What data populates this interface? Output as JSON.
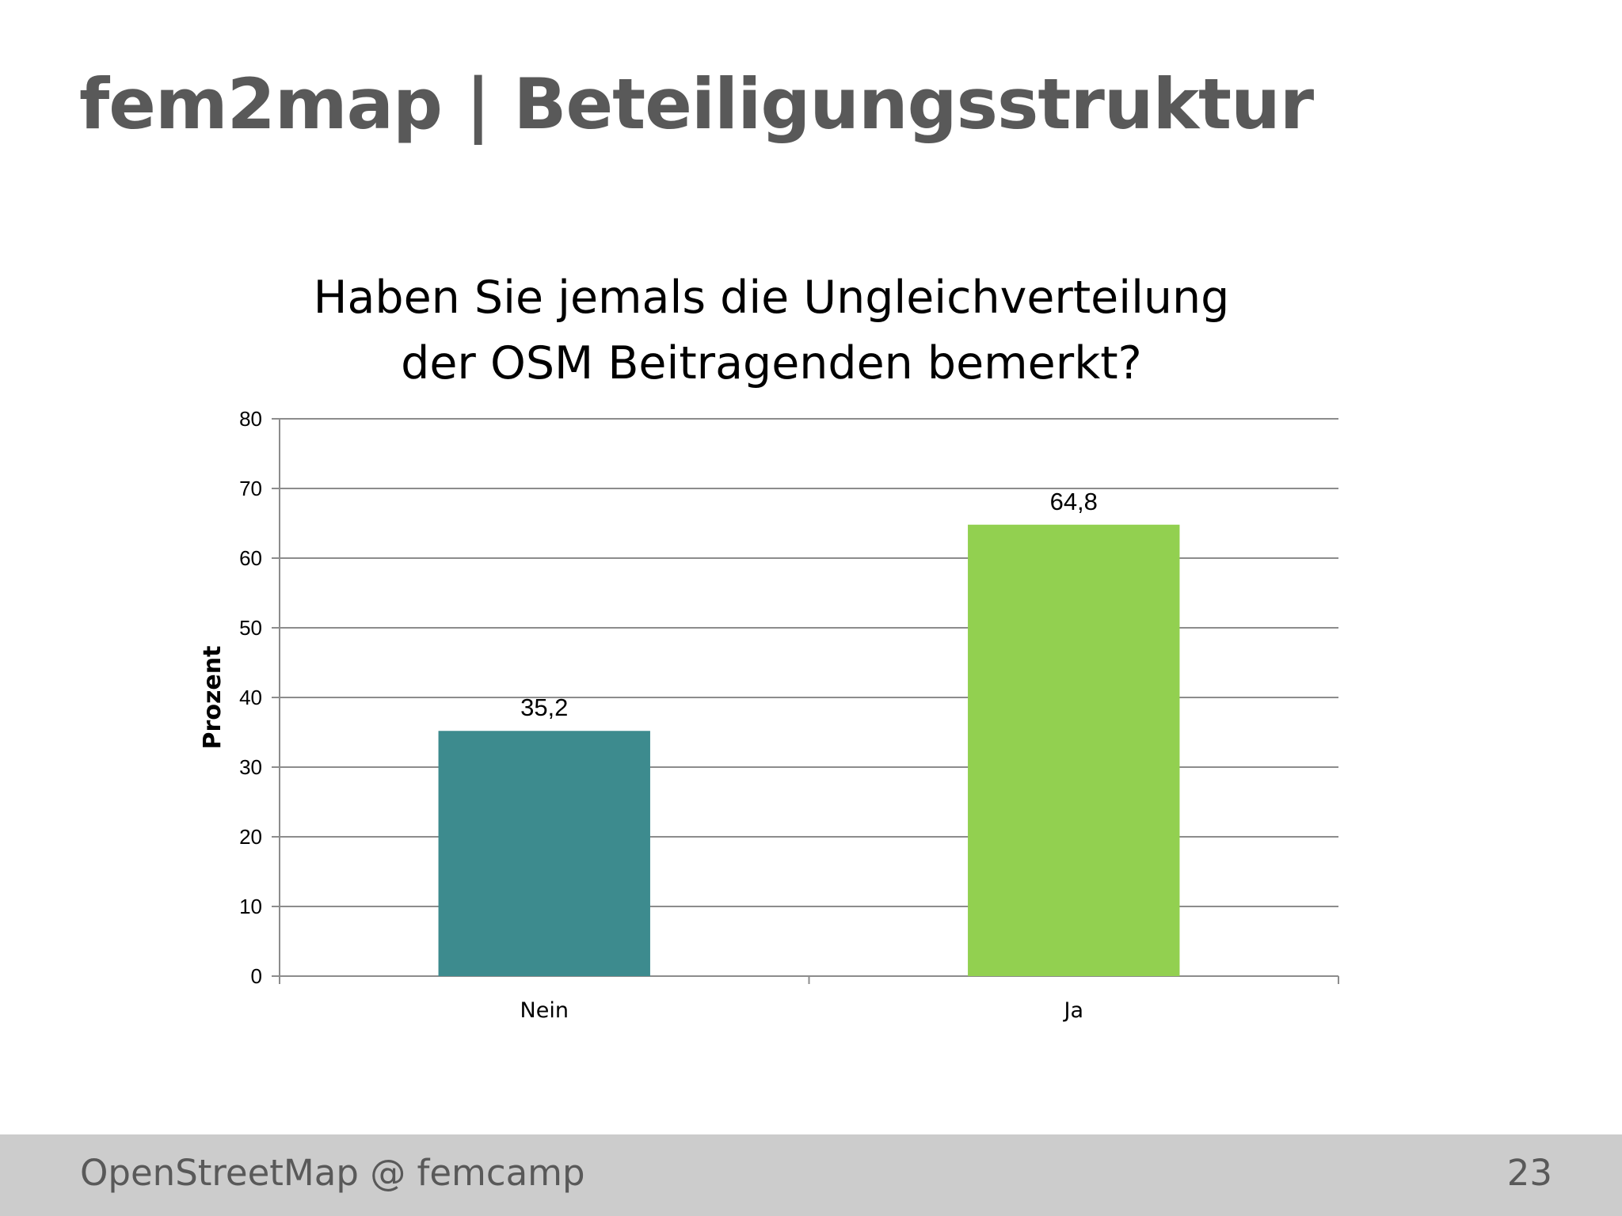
{
  "slide": {
    "title": "fem2map | Beteiligungsstruktur",
    "footer_text": "OpenStreetMap @ femcamp",
    "page_number": "23"
  },
  "chart_data": {
    "type": "bar",
    "title_lines": [
      "Haben Sie jemals die Ungleichverteilung",
      "der OSM Beitragenden bemerkt?"
    ],
    "categories": [
      "Nein",
      "Ja"
    ],
    "values": [
      35.2,
      64.8
    ],
    "data_labels": [
      "35,2",
      "64,8"
    ],
    "colors": [
      "#3d8b8e",
      "#92d050"
    ],
    "xlabel": "",
    "ylabel": "Prozent",
    "ylim": [
      0,
      80
    ],
    "yticks": [
      0,
      10,
      20,
      30,
      40,
      50,
      60,
      70,
      80
    ],
    "grid": true,
    "legend": "none"
  }
}
